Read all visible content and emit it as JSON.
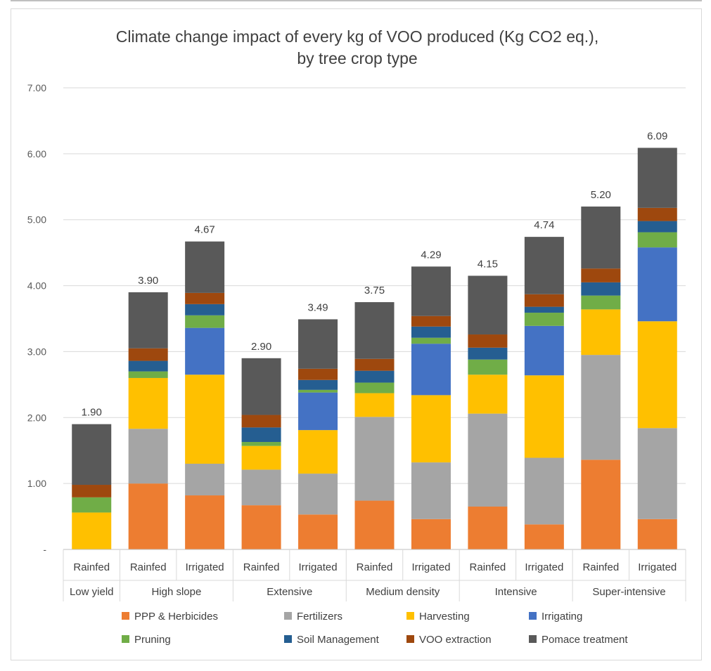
{
  "chart_data": {
    "type": "bar",
    "stacked": true,
    "title": "Climate change impact of every kg of VOO produced (Kg CO2 eq.), by tree crop type",
    "title_lines": [
      "Climate change impact of every kg of VOO produced (Kg CO2 eq.),",
      "by tree crop type"
    ],
    "ylim": [
      0,
      7
    ],
    "yticks": [
      "-",
      "1.00",
      "2.00",
      "3.00",
      "4.00",
      "5.00",
      "6.00",
      "7.00"
    ],
    "ytick_values": [
      0,
      1,
      2,
      3,
      4,
      5,
      6,
      7
    ],
    "grid": true,
    "legend_position": "bottom",
    "categories": [
      "Rainfed",
      "Rainfed",
      "Irrigated",
      "Rainfed",
      "Irrigated",
      "Rainfed",
      "Irrigated",
      "Rainfed",
      "Irrigated",
      "Rainfed",
      "Irrigated"
    ],
    "groups": [
      {
        "label": "Low yield",
        "count": 1
      },
      {
        "label": "High slope",
        "count": 2
      },
      {
        "label": "Extensive",
        "count": 2
      },
      {
        "label": "Medium density",
        "count": 2
      },
      {
        "label": "Intensive",
        "count": 2
      },
      {
        "label": "Super-intensive",
        "count": 2
      }
    ],
    "totals": [
      "1.90",
      "3.90",
      "4.67",
      "2.90",
      "3.49",
      "3.75",
      "4.29",
      "4.15",
      "4.74",
      "5.20",
      "6.09"
    ],
    "series": [
      {
        "name": "PPP & Herbicides",
        "color": "#ed7d31",
        "values": [
          0,
          1.0,
          0.82,
          0.67,
          0.53,
          0.74,
          0.46,
          0.65,
          0.38,
          1.36,
          0.46
        ]
      },
      {
        "name": "Fertilizers",
        "color": "#a5a5a5",
        "values": [
          0,
          0.83,
          0.48,
          0.54,
          0.62,
          1.27,
          0.86,
          1.41,
          1.01,
          1.59,
          1.38
        ]
      },
      {
        "name": "Harvesting",
        "color": "#ffc000",
        "values": [
          0.56,
          0.77,
          1.35,
          0.36,
          0.66,
          0.36,
          1.02,
          0.59,
          1.25,
          0.69,
          1.62
        ]
      },
      {
        "name": "Irrigating",
        "color": "#4472c4",
        "values": [
          0,
          0,
          0.71,
          0,
          0.57,
          0,
          0.78,
          0,
          0.75,
          0,
          1.12
        ]
      },
      {
        "name": "Pruning",
        "color": "#70ad47",
        "values": [
          0.23,
          0.1,
          0.19,
          0.06,
          0.04,
          0.16,
          0.09,
          0.23,
          0.2,
          0.21,
          0.23
        ]
      },
      {
        "name": "Soil Management",
        "color": "#255e91",
        "values": [
          0,
          0.16,
          0.17,
          0.22,
          0.15,
          0.18,
          0.17,
          0.18,
          0.09,
          0.2,
          0.17
        ]
      },
      {
        "name": "VOO extraction",
        "color": "#9e480e",
        "values": [
          0.19,
          0.19,
          0.17,
          0.19,
          0.17,
          0.18,
          0.16,
          0.2,
          0.19,
          0.21,
          0.2
        ]
      },
      {
        "name": "Pomace treatment",
        "color": "#595959",
        "values": [
          0.92,
          0.85,
          0.78,
          0.86,
          0.75,
          0.86,
          0.75,
          0.89,
          0.87,
          0.94,
          0.91
        ]
      }
    ]
  }
}
